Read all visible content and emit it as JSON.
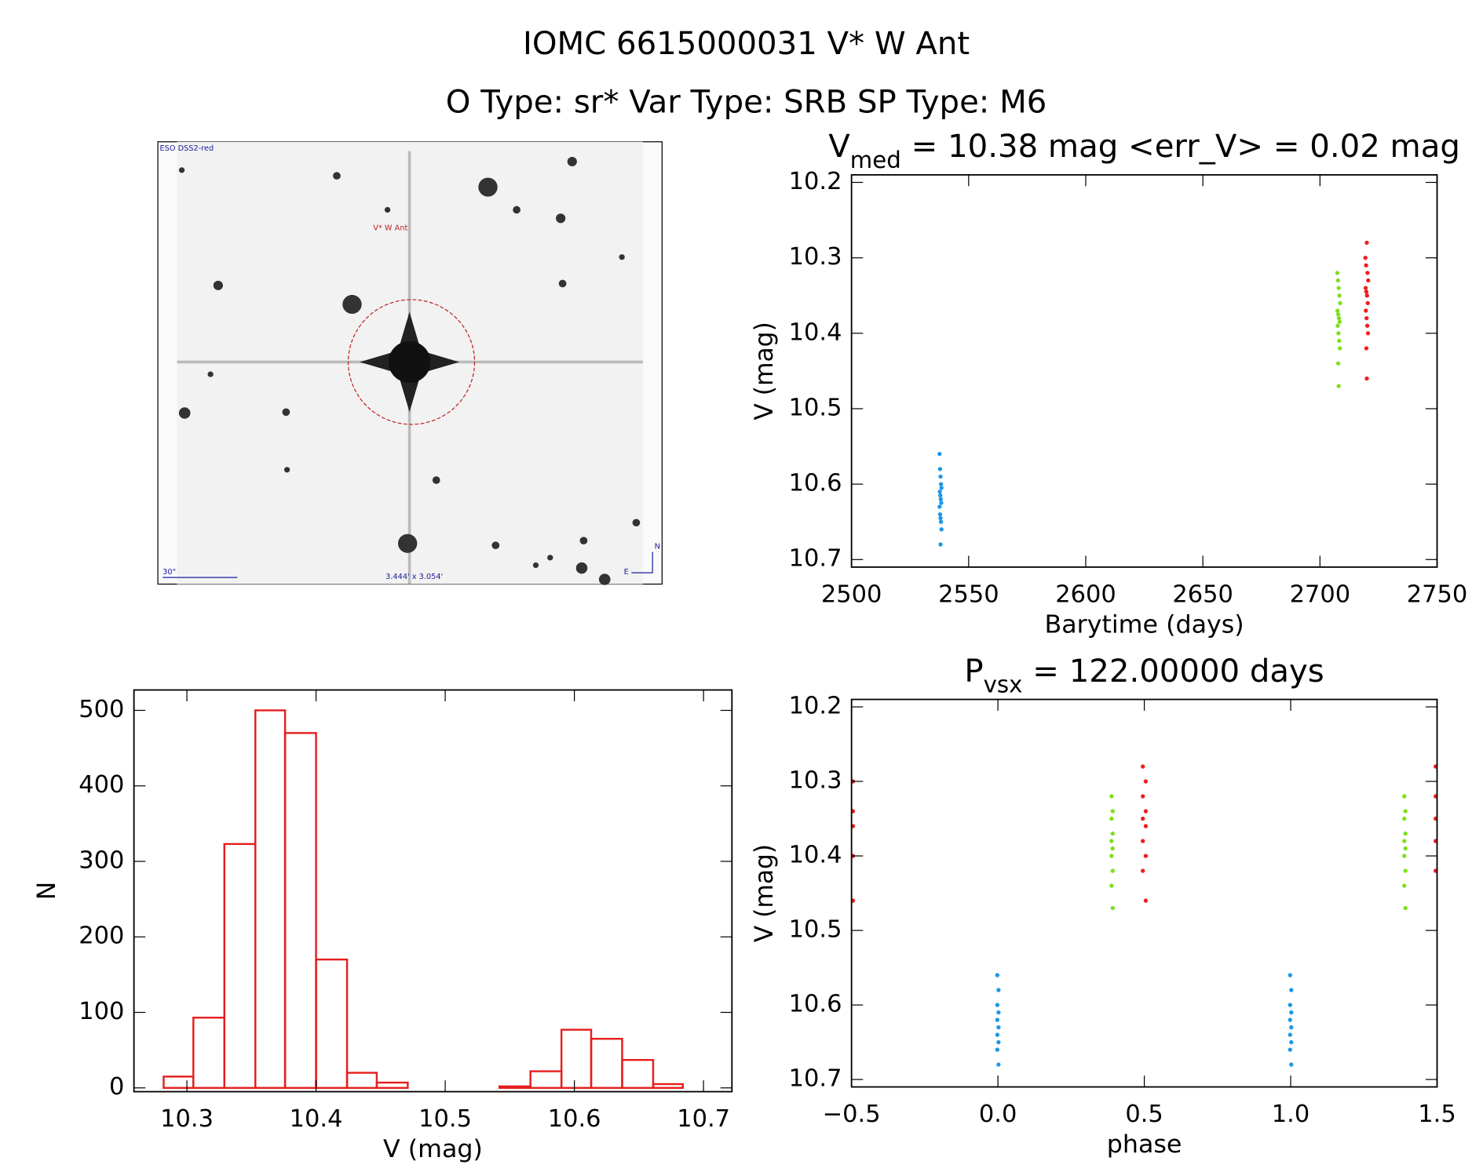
{
  "title": "IOMC 6615000031   V* W Ant",
  "subtitle": "O Type: sr*  Var Type: SRB  SP Type: M6",
  "image": {
    "survey": "ESO DSS2-red",
    "target": "V* W Ant",
    "scale": "30\"",
    "field": "3.444' x 3.054'",
    "east": "E",
    "north": "N"
  },
  "chart_data": [
    {
      "type": "scatter",
      "title": [
        "V",
        "med",
        " = 10.38 mag <err_V> = 0.02 mag"
      ],
      "xlabel": "Barytime (days)",
      "ylabel": "V (mag)",
      "xlim": [
        2500,
        2750
      ],
      "xticks": [
        2500,
        2550,
        2600,
        2650,
        2700,
        2750
      ],
      "ylim": [
        10.71,
        10.19
      ],
      "yticks": [
        10.2,
        10.3,
        10.4,
        10.5,
        10.6,
        10.7
      ],
      "series": [
        {
          "color": "#1e96e6",
          "x": [
            2537.6,
            2537.8,
            2538.0,
            2538.2,
            2538.4,
            2537.7,
            2537.9,
            2538.1,
            2538.3,
            2537.6,
            2537.8,
            2538.0,
            2538.2,
            2538.4,
            2538.0
          ],
          "values": [
            10.56,
            10.58,
            10.59,
            10.6,
            10.605,
            10.61,
            10.615,
            10.62,
            10.625,
            10.63,
            10.64,
            10.645,
            10.65,
            10.66,
            10.68
          ]
        },
        {
          "color": "#7ee01e",
          "x": [
            2707.4,
            2707.7,
            2708.0,
            2708.3,
            2708.6,
            2707.5,
            2707.8,
            2708.1,
            2708.4,
            2707.6,
            2707.9,
            2708.2,
            2708.5,
            2707.8,
            2708.0
          ],
          "values": [
            10.32,
            10.33,
            10.34,
            10.35,
            10.36,
            10.37,
            10.375,
            10.38,
            10.385,
            10.39,
            10.4,
            10.41,
            10.42,
            10.44,
            10.47
          ]
        },
        {
          "color": "#f01e1e",
          "x": [
            2720.0,
            2719.4,
            2719.7,
            2720.3,
            2720.6,
            2719.5,
            2719.8,
            2720.1,
            2720.4,
            2719.6,
            2719.9,
            2720.2,
            2720.5,
            2719.8,
            2720.0
          ],
          "values": [
            10.28,
            10.3,
            10.31,
            10.32,
            10.33,
            10.34,
            10.345,
            10.35,
            10.36,
            10.37,
            10.38,
            10.39,
            10.4,
            10.42,
            10.46
          ]
        }
      ]
    },
    {
      "type": "scatter",
      "title": [
        "P",
        "vsx",
        " = 122.00000 days"
      ],
      "xlabel": "phase",
      "ylabel": "V (mag)",
      "xlim": [
        -0.5,
        1.5
      ],
      "xticks": [
        {
          "value": -0.5,
          "label": "−0.5"
        },
        {
          "value": 0,
          "label": "0.0"
        },
        0.5,
        {
          "value": 1,
          "label": "1.0"
        },
        1.5
      ],
      "ylim": [
        10.71,
        10.19
      ],
      "yticks": [
        10.2,
        10.3,
        10.4,
        10.5,
        10.6,
        10.7
      ],
      "series": [
        {
          "color": "#1e96e6",
          "x": [
            -0.002,
            0.002,
            -0.002,
            0.002,
            -0.002,
            0.002,
            -0.002,
            0.002,
            -0.002,
            0.002,
            0.998,
            1.002,
            0.998,
            1.002,
            0.998,
            1.002,
            0.998,
            1.002,
            0.998,
            1.002
          ],
          "values": [
            10.56,
            10.58,
            10.6,
            10.61,
            10.62,
            10.63,
            10.64,
            10.65,
            10.66,
            10.68,
            10.56,
            10.58,
            10.6,
            10.61,
            10.62,
            10.63,
            10.64,
            10.65,
            10.66,
            10.68
          ]
        },
        {
          "color": "#7ee01e",
          "x": [
            0.388,
            0.392,
            0.388,
            0.392,
            0.388,
            0.392,
            0.388,
            0.392,
            0.388,
            0.392,
            1.388,
            1.392,
            1.388,
            1.392,
            1.388,
            1.392,
            1.388,
            1.392,
            1.388,
            1.392
          ],
          "values": [
            10.32,
            10.34,
            10.35,
            10.37,
            10.38,
            10.39,
            10.4,
            10.42,
            10.44,
            10.47,
            10.32,
            10.34,
            10.35,
            10.37,
            10.38,
            10.39,
            10.4,
            10.42,
            10.44,
            10.47
          ]
        },
        {
          "color": "#f01e1e",
          "x": [
            0.495,
            0.505,
            0.495,
            0.505,
            0.495,
            0.505,
            0.495,
            0.505,
            0.495,
            0.505,
            1.495,
            1.505,
            1.495,
            1.505,
            1.495,
            1.505,
            1.495,
            1.505,
            1.495,
            1.505,
            -0.505,
            -0.495,
            -0.505,
            -0.495,
            -0.505,
            -0.495,
            -0.505,
            -0.495,
            -0.505,
            -0.495
          ],
          "values": [
            10.28,
            10.3,
            10.32,
            10.34,
            10.35,
            10.36,
            10.38,
            10.4,
            10.42,
            10.46,
            10.28,
            10.3,
            10.32,
            10.34,
            10.35,
            10.36,
            10.38,
            10.4,
            10.42,
            10.46,
            10.28,
            10.3,
            10.32,
            10.34,
            10.35,
            10.36,
            10.38,
            10.4,
            10.42,
            10.46
          ]
        }
      ]
    },
    {
      "type": "histogram",
      "xlabel": "V (mag)",
      "ylabel": "N",
      "color": "#e61e1e",
      "xlim": [
        10.259,
        10.722
      ],
      "xticks": [
        10.3,
        10.4,
        10.5,
        10.6,
        10.7
      ],
      "ylim": [
        -5,
        527
      ],
      "yticks": [
        0,
        100,
        200,
        300,
        400,
        500
      ],
      "bins": [
        10.282,
        10.305,
        10.329,
        10.353,
        10.376,
        10.4,
        10.424,
        10.447,
        10.471,
        10.495,
        10.518,
        10.542,
        10.566,
        10.59,
        10.613,
        10.637,
        10.661,
        10.684
      ],
      "values": [
        15,
        93,
        323,
        500,
        470,
        170,
        20,
        7,
        0,
        0,
        0,
        2,
        22,
        77,
        65,
        37,
        5
      ]
    }
  ]
}
